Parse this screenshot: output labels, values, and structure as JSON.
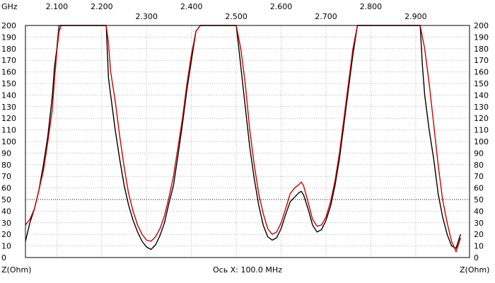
{
  "chart_data": {
    "type": "line",
    "x_unit_label": "GHz",
    "y_unit_left": "Z(Ohm)",
    "y_unit_right": "Z(Ohm)",
    "x_axis_caption": "Ось X: 100.0 MHz",
    "xlim": [
      2.03,
      3.02
    ],
    "ylim": [
      0,
      200
    ],
    "x_ticks": [
      {
        "v": 2.1,
        "label": "2.100",
        "row": "top"
      },
      {
        "v": 2.2,
        "label": "2.200",
        "row": "top"
      },
      {
        "v": 2.3,
        "label": "2.300",
        "row": "bottom"
      },
      {
        "v": 2.4,
        "label": "2.400",
        "row": "top"
      },
      {
        "v": 2.5,
        "label": "2.500",
        "row": "bottom"
      },
      {
        "v": 2.6,
        "label": "2.600",
        "row": "top"
      },
      {
        "v": 2.7,
        "label": "2.700",
        "row": "bottom"
      },
      {
        "v": 2.8,
        "label": "2.800",
        "row": "top"
      },
      {
        "v": 2.9,
        "label": "2.900",
        "row": "bottom"
      }
    ],
    "y_ticks": [
      0,
      10,
      20,
      30,
      40,
      50,
      60,
      70,
      80,
      90,
      100,
      110,
      120,
      130,
      140,
      150,
      160,
      170,
      180,
      190,
      200
    ],
    "reference_level": 50,
    "grid": true,
    "series": [
      {
        "color": "#000000",
        "x": [
          2.03,
          2.04,
          2.05,
          2.06,
          2.07,
          2.08,
          2.09,
          2.095,
          2.1,
          2.105,
          2.11,
          2.12,
          2.15,
          2.18,
          2.21,
          2.215,
          2.22,
          2.23,
          2.24,
          2.25,
          2.26,
          2.27,
          2.28,
          2.29,
          2.3,
          2.31,
          2.32,
          2.33,
          2.34,
          2.35,
          2.36,
          2.37,
          2.38,
          2.39,
          2.4,
          2.41,
          2.42,
          2.43,
          2.5,
          2.51,
          2.52,
          2.53,
          2.54,
          2.55,
          2.56,
          2.57,
          2.58,
          2.59,
          2.6,
          2.61,
          2.62,
          2.63,
          2.64,
          2.645,
          2.65,
          2.66,
          2.67,
          2.68,
          2.69,
          2.7,
          2.71,
          2.72,
          2.73,
          2.74,
          2.75,
          2.76,
          2.77,
          2.78,
          2.79,
          2.8,
          2.81,
          2.91,
          2.915,
          2.92,
          2.93,
          2.94,
          2.95,
          2.96,
          2.97,
          2.98,
          2.99,
          3.0
        ],
        "y": [
          14,
          30,
          42,
          58,
          80,
          105,
          140,
          165,
          180,
          200,
          200,
          200,
          200,
          200,
          200,
          155,
          140,
          110,
          85,
          62,
          45,
          32,
          22,
          14,
          9,
          7,
          11,
          19,
          30,
          47,
          62,
          88,
          115,
          145,
          170,
          195,
          200,
          200,
          200,
          165,
          130,
          95,
          68,
          45,
          28,
          18,
          15,
          17,
          25,
          37,
          48,
          52,
          56,
          57,
          54,
          42,
          28,
          22,
          24,
          32,
          44,
          62,
          85,
          115,
          145,
          175,
          200,
          200,
          200,
          200,
          200,
          200,
          165,
          140,
          110,
          85,
          55,
          35,
          20,
          10,
          8,
          20
        ]
      },
      {
        "color": "#cc0000",
        "x": [
          2.03,
          2.04,
          2.05,
          2.06,
          2.07,
          2.08,
          2.09,
          2.095,
          2.1,
          2.105,
          2.11,
          2.12,
          2.15,
          2.18,
          2.21,
          2.215,
          2.22,
          2.23,
          2.24,
          2.25,
          2.26,
          2.27,
          2.28,
          2.29,
          2.3,
          2.31,
          2.32,
          2.33,
          2.34,
          2.35,
          2.36,
          2.37,
          2.38,
          2.39,
          2.4,
          2.41,
          2.42,
          2.43,
          2.5,
          2.51,
          2.52,
          2.53,
          2.54,
          2.55,
          2.56,
          2.57,
          2.58,
          2.59,
          2.6,
          2.61,
          2.62,
          2.63,
          2.64,
          2.645,
          2.65,
          2.66,
          2.67,
          2.68,
          2.69,
          2.7,
          2.71,
          2.72,
          2.73,
          2.74,
          2.75,
          2.76,
          2.77,
          2.78,
          2.79,
          2.8,
          2.81,
          2.91,
          2.92,
          2.93,
          2.94,
          2.95,
          2.96,
          2.97,
          2.98,
          2.99,
          3.0
        ],
        "y": [
          28,
          33,
          42,
          58,
          75,
          100,
          128,
          155,
          178,
          195,
          200,
          200,
          200,
          200,
          200,
          185,
          160,
          135,
          105,
          78,
          55,
          40,
          28,
          20,
          15,
          14,
          18,
          25,
          36,
          52,
          70,
          95,
          120,
          150,
          175,
          195,
          200,
          200,
          200,
          180,
          150,
          110,
          80,
          55,
          38,
          25,
          20,
          22,
          30,
          42,
          55,
          60,
          63,
          65,
          62,
          48,
          33,
          27,
          28,
          35,
          48,
          66,
          90,
          120,
          150,
          180,
          200,
          200,
          200,
          200,
          200,
          200,
          180,
          150,
          115,
          80,
          50,
          30,
          14,
          5,
          17
        ]
      }
    ]
  }
}
